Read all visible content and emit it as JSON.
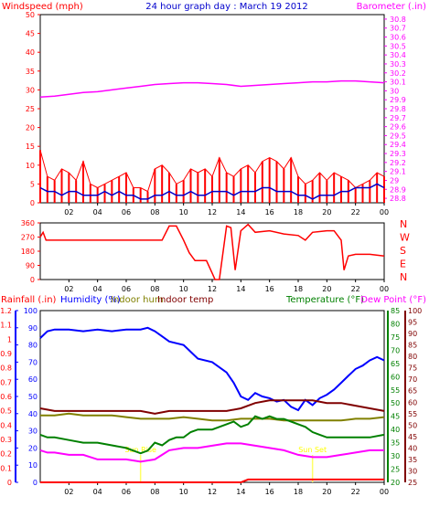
{
  "colors": {
    "wind": "#ff0000",
    "gust": "#ff0000",
    "avgwind": "#0000cc",
    "baro": "#ff00ff",
    "winddir": "#ff0000",
    "rain": "#ff0000",
    "humidity": "#0000ff",
    "indoorhum": "#808000",
    "indoortemp": "#800000",
    "temp": "#008000",
    "dew": "#ff00ff",
    "title": "#0000cc",
    "axis": "#000000"
  },
  "chart_data": [
    {
      "type": "line",
      "title": "24 hour graph day : March 19 2012",
      "ylabel": "Windspeed (mph)",
      "y2label": "Barometer (.in)",
      "x_ticks": [
        "02",
        "04",
        "06",
        "08",
        "10",
        "12",
        "14",
        "16",
        "18",
        "20",
        "22",
        "00"
      ],
      "ylim": [
        0,
        50
      ],
      "y_ticks": [
        0,
        5,
        10,
        15,
        20,
        25,
        30,
        35,
        40,
        45,
        50
      ],
      "y2lim": [
        28.75,
        30.85
      ],
      "y2_ticks": [
        "28.8",
        "28.9",
        "29",
        "29.1",
        "29.2",
        "29.3",
        "29.4",
        "29.5",
        "29.6",
        "29.7",
        "29.8",
        "29.9",
        "30",
        "30.1",
        "30.2",
        "30.3",
        "30.4",
        "30.5",
        "30.6",
        "30.7",
        "30.8"
      ],
      "series": [
        {
          "key": "gust",
          "axis": "y",
          "x": [
            0,
            0.5,
            1,
            1.5,
            2,
            2.5,
            3,
            3.5,
            4,
            4.5,
            5,
            5.5,
            6,
            6.5,
            7,
            7.5,
            8,
            8.5,
            9,
            9.5,
            10,
            10.5,
            11,
            11.5,
            12,
            12.5,
            13,
            13.5,
            14,
            14.5,
            15,
            15.5,
            16,
            16.5,
            17,
            17.5,
            18,
            18.5,
            19,
            19.5,
            20,
            20.5,
            21,
            21.5,
            22,
            22.5,
            23,
            23.5,
            24
          ],
          "values": [
            14,
            7,
            6,
            9,
            8,
            6,
            11,
            5,
            4,
            5,
            6,
            7,
            8,
            4,
            4,
            3,
            9,
            10,
            8,
            5,
            6,
            9,
            8,
            9,
            7,
            12,
            8,
            7,
            9,
            10,
            8,
            11,
            12,
            11,
            9,
            12,
            7,
            5,
            6,
            8,
            6,
            8,
            7,
            6,
            4,
            5,
            6,
            8,
            7
          ]
        },
        {
          "key": "avgwind",
          "axis": "y",
          "x": [
            0,
            0.5,
            1,
            1.5,
            2,
            2.5,
            3,
            3.5,
            4,
            4.5,
            5,
            5.5,
            6,
            6.5,
            7,
            7.5,
            8,
            8.5,
            9,
            9.5,
            10,
            10.5,
            11,
            11.5,
            12,
            12.5,
            13,
            13.5,
            14,
            14.5,
            15,
            15.5,
            16,
            16.5,
            17,
            17.5,
            18,
            18.5,
            19,
            19.5,
            20,
            20.5,
            21,
            21.5,
            22,
            22.5,
            23,
            23.5,
            24
          ],
          "values": [
            4,
            3,
            3,
            2,
            3,
            3,
            2,
            2,
            2,
            3,
            2,
            3,
            2,
            2,
            1,
            1,
            2,
            2,
            3,
            2,
            2,
            3,
            2,
            2,
            3,
            3,
            3,
            2,
            3,
            3,
            3,
            4,
            4,
            3,
            3,
            3,
            2,
            2,
            1,
            2,
            2,
            2,
            3,
            3,
            4,
            4,
            4,
            5,
            4
          ]
        },
        {
          "key": "baro",
          "axis": "y2",
          "x": [
            0,
            1,
            2,
            3,
            4,
            5,
            6,
            7,
            8,
            9,
            10,
            11,
            12,
            13,
            14,
            15,
            16,
            17,
            18,
            19,
            20,
            21,
            22,
            23,
            24
          ],
          "values": [
            29.93,
            29.94,
            29.96,
            29.98,
            29.99,
            30.01,
            30.03,
            30.05,
            30.07,
            30.08,
            30.09,
            30.09,
            30.08,
            30.07,
            30.05,
            30.06,
            30.07,
            30.08,
            30.09,
            30.1,
            30.1,
            30.11,
            30.11,
            30.1,
            30.09
          ]
        }
      ]
    },
    {
      "type": "line",
      "y_ticks": [
        0,
        90,
        180,
        270,
        360
      ],
      "ylim": [
        0,
        360
      ],
      "dir_labels": [
        "N",
        "W",
        "S",
        "E",
        "N"
      ],
      "x_ticks": [
        "02",
        "04",
        "06",
        "08",
        "10",
        "12",
        "14",
        "16",
        "18",
        "20",
        "22",
        "00"
      ],
      "series": [
        {
          "key": "winddir",
          "x": [
            0,
            0.2,
            0.4,
            1,
            2,
            3,
            4,
            5,
            6,
            7,
            8,
            8.2,
            8.5,
            9,
            9.5,
            10,
            10.4,
            10.8,
            11.2,
            11.6,
            12,
            12.2,
            12.5,
            13,
            13.3,
            13.6,
            14,
            14.5,
            15,
            16,
            17,
            18,
            18.5,
            19,
            20,
            20.5,
            21,
            21.2,
            21.5,
            22,
            23,
            24
          ],
          "values": [
            270,
            300,
            250,
            250,
            250,
            250,
            250,
            250,
            250,
            250,
            250,
            250,
            250,
            340,
            340,
            250,
            170,
            120,
            120,
            120,
            40,
            0,
            0,
            340,
            330,
            60,
            310,
            350,
            300,
            310,
            290,
            280,
            250,
            300,
            310,
            310,
            250,
            60,
            150,
            160,
            160,
            150
          ]
        }
      ]
    },
    {
      "type": "line",
      "legend": [
        "Rainfall (.in)",
        "Humidity (%)",
        "Indoor hum",
        "Indoor temp",
        "Temperature (°F)",
        "Dew Point (°F)"
      ],
      "x_ticks": [
        "02",
        "04",
        "06",
        "08",
        "10",
        "12",
        "14",
        "16",
        "18",
        "20",
        "22",
        "00"
      ],
      "rain_ticks": [
        "0",
        "0.1",
        "0.2",
        "0.3",
        "0.4",
        "0.5",
        "0.6",
        "0.7",
        "0.8",
        "0.9",
        "1",
        "1.1",
        "1.2"
      ],
      "hum_ticks": [
        "0",
        "10",
        "20",
        "30",
        "40",
        "50",
        "60",
        "70",
        "80",
        "90",
        "100"
      ],
      "temp_ticks": [
        "20",
        "25",
        "30",
        "35",
        "40",
        "45",
        "50",
        "55",
        "60",
        "65",
        "70",
        "75",
        "80",
        "85"
      ],
      "dew_ticks": [
        "25",
        "30",
        "35",
        "40",
        "45",
        "50",
        "55",
        "60",
        "65",
        "70",
        "75",
        "80",
        "85",
        "90",
        "95",
        "100"
      ],
      "annotations": [
        {
          "text": "Sun Rise",
          "x": 7
        },
        {
          "text": "Sun Set",
          "x": 19
        }
      ],
      "series": [
        {
          "key": "rain",
          "axis": "rain",
          "x": [
            0,
            1,
            2,
            3,
            4,
            5,
            6,
            7,
            8,
            9,
            10,
            11,
            12,
            13,
            14,
            14.5,
            15,
            16,
            17,
            18,
            19,
            20,
            21,
            22,
            23,
            24
          ],
          "values": [
            0,
            0,
            0,
            0,
            0,
            0,
            0,
            0,
            0,
            0,
            0,
            0,
            0,
            0,
            0,
            0.02,
            0.02,
            0.02,
            0.02,
            0.02,
            0.02,
            0.02,
            0.02,
            0.02,
            0.02,
            0.02
          ]
        },
        {
          "key": "humidity",
          "axis": "hum",
          "x": [
            0,
            0.5,
            1,
            2,
            3,
            4,
            5,
            6,
            7,
            7.5,
            8,
            8.5,
            9,
            10,
            10.5,
            11,
            12,
            13,
            13.5,
            14,
            14.5,
            15,
            15.5,
            16,
            16.5,
            17,
            17.5,
            18,
            18.5,
            19,
            19.5,
            20,
            20.5,
            21,
            21.5,
            22,
            22.5,
            23,
            23.5,
            24
          ],
          "values": [
            84,
            88,
            89,
            89,
            88,
            89,
            88,
            89,
            89,
            90,
            88,
            85,
            82,
            80,
            76,
            72,
            70,
            64,
            58,
            50,
            48,
            52,
            50,
            49,
            47,
            48,
            44,
            42,
            48,
            45,
            49,
            51,
            54,
            58,
            62,
            66,
            68,
            71,
            73,
            71
          ]
        },
        {
          "key": "indoorhum",
          "axis": "hum",
          "x": [
            0,
            1,
            2,
            3,
            4,
            5,
            6,
            7,
            8,
            9,
            10,
            11,
            12,
            13,
            14,
            15,
            16,
            17,
            18,
            19,
            20,
            21,
            22,
            23,
            24
          ],
          "values": [
            39,
            39,
            40,
            39,
            39,
            39,
            38,
            37,
            37,
            37,
            38,
            37,
            36,
            36,
            37,
            37,
            37,
            36,
            36,
            36,
            36,
            36,
            37,
            37,
            38
          ]
        },
        {
          "key": "indoortemp",
          "axis": "temp",
          "x": [
            0,
            1,
            2,
            3,
            4,
            5,
            6,
            7,
            8,
            9,
            10,
            11,
            12,
            13,
            14,
            15,
            16,
            17,
            18,
            19,
            20,
            21,
            22,
            23,
            24
          ],
          "values": [
            48,
            47,
            47,
            47,
            47,
            47,
            47,
            47,
            46,
            47,
            47,
            47,
            47,
            47,
            48,
            50,
            51,
            51,
            51,
            51,
            50,
            50,
            49,
            48,
            47
          ]
        },
        {
          "key": "temp",
          "axis": "temp",
          "x": [
            0,
            0.5,
            1,
            2,
            3,
            4,
            5,
            6,
            6.5,
            7,
            7.5,
            8,
            8.5,
            9,
            9.5,
            10,
            10.5,
            11,
            12,
            13,
            13.5,
            14,
            14.5,
            15,
            15.5,
            16,
            16.5,
            17,
            17.5,
            18,
            18.5,
            19,
            19.5,
            20,
            21,
            22,
            23,
            24
          ],
          "values": [
            38,
            37,
            37,
            36,
            35,
            35,
            34,
            33,
            32,
            31,
            32,
            35,
            34,
            36,
            37,
            37,
            39,
            40,
            40,
            42,
            43,
            41,
            42,
            45,
            44,
            45,
            44,
            44,
            43,
            42,
            41,
            39,
            38,
            37,
            37,
            37,
            37,
            38
          ]
        },
        {
          "key": "dew",
          "axis": "dew",
          "x": [
            0,
            0.5,
            1,
            2,
            3,
            4,
            5,
            6,
            7,
            8,
            8.5,
            9,
            10,
            11,
            12,
            13,
            14,
            15,
            16,
            17,
            18,
            19,
            20,
            21,
            22,
            23,
            24
          ],
          "values": [
            39,
            38,
            38,
            37,
            37,
            35,
            35,
            35,
            34,
            35,
            37,
            39,
            40,
            40,
            41,
            42,
            42,
            41,
            40,
            39,
            37,
            36,
            36,
            37,
            38,
            39,
            39
          ]
        }
      ]
    }
  ]
}
